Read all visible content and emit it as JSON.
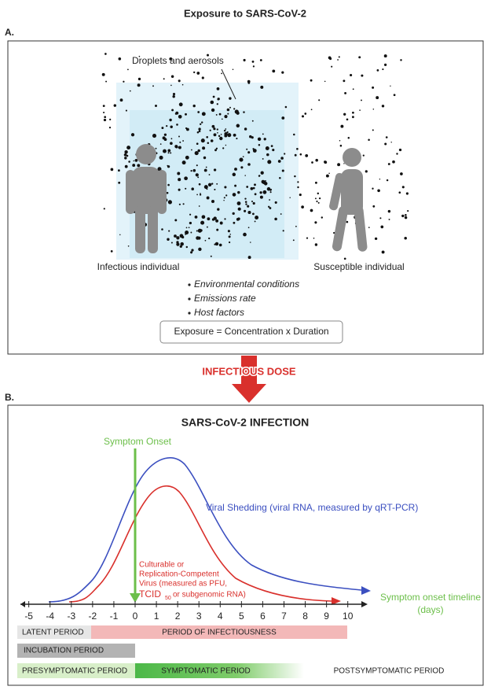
{
  "title": "Exposure to  SARS-CoV-2",
  "panel_a": {
    "label": "A.",
    "droplets_label": "Droplets and aerosols",
    "infectious_label": "Infectious individual",
    "susceptible_label": "Susceptible individual",
    "factors": [
      "Environmental conditions",
      "Emissions rate",
      "Host factors"
    ],
    "equation": "Exposure = Concentration x Duration"
  },
  "arrow_label": "INFECTIOUS DOSE",
  "panel_b": {
    "label": "B.",
    "title": "SARS-CoV-2 INFECTION",
    "symptom_onset": "Symptom Onset",
    "viral_shedding": "Viral Shedding (viral RNA, measured by qRT-PCR)",
    "culturable_lines": [
      "Culturable or",
      "Replication-Competent",
      "Virus (measured as PFU,"
    ],
    "tcid": "TCID",
    "tcid_sub": "50",
    "tcid_rest": "or subgenomic RNA)",
    "timeline_label": [
      "Symptom onset timeline",
      "(days)"
    ],
    "ticks": [
      -5,
      -4,
      -3,
      -2,
      -1,
      0,
      1,
      2,
      3,
      4,
      5,
      6,
      7,
      8,
      9,
      10
    ],
    "periods": {
      "latent": "LATENT PERIOD",
      "infectiousness": "PERIOD OF INFECTIOUSNESS",
      "incubation": "INCUBATION PERIOD",
      "presymptomatic": "PRESYMPTOMATIC PERIOD",
      "symptomatic": "SYMPTOMATIC PERIOD",
      "postsymptomatic": "POSTSYMPTOMATIC PERIOD"
    }
  }
}
